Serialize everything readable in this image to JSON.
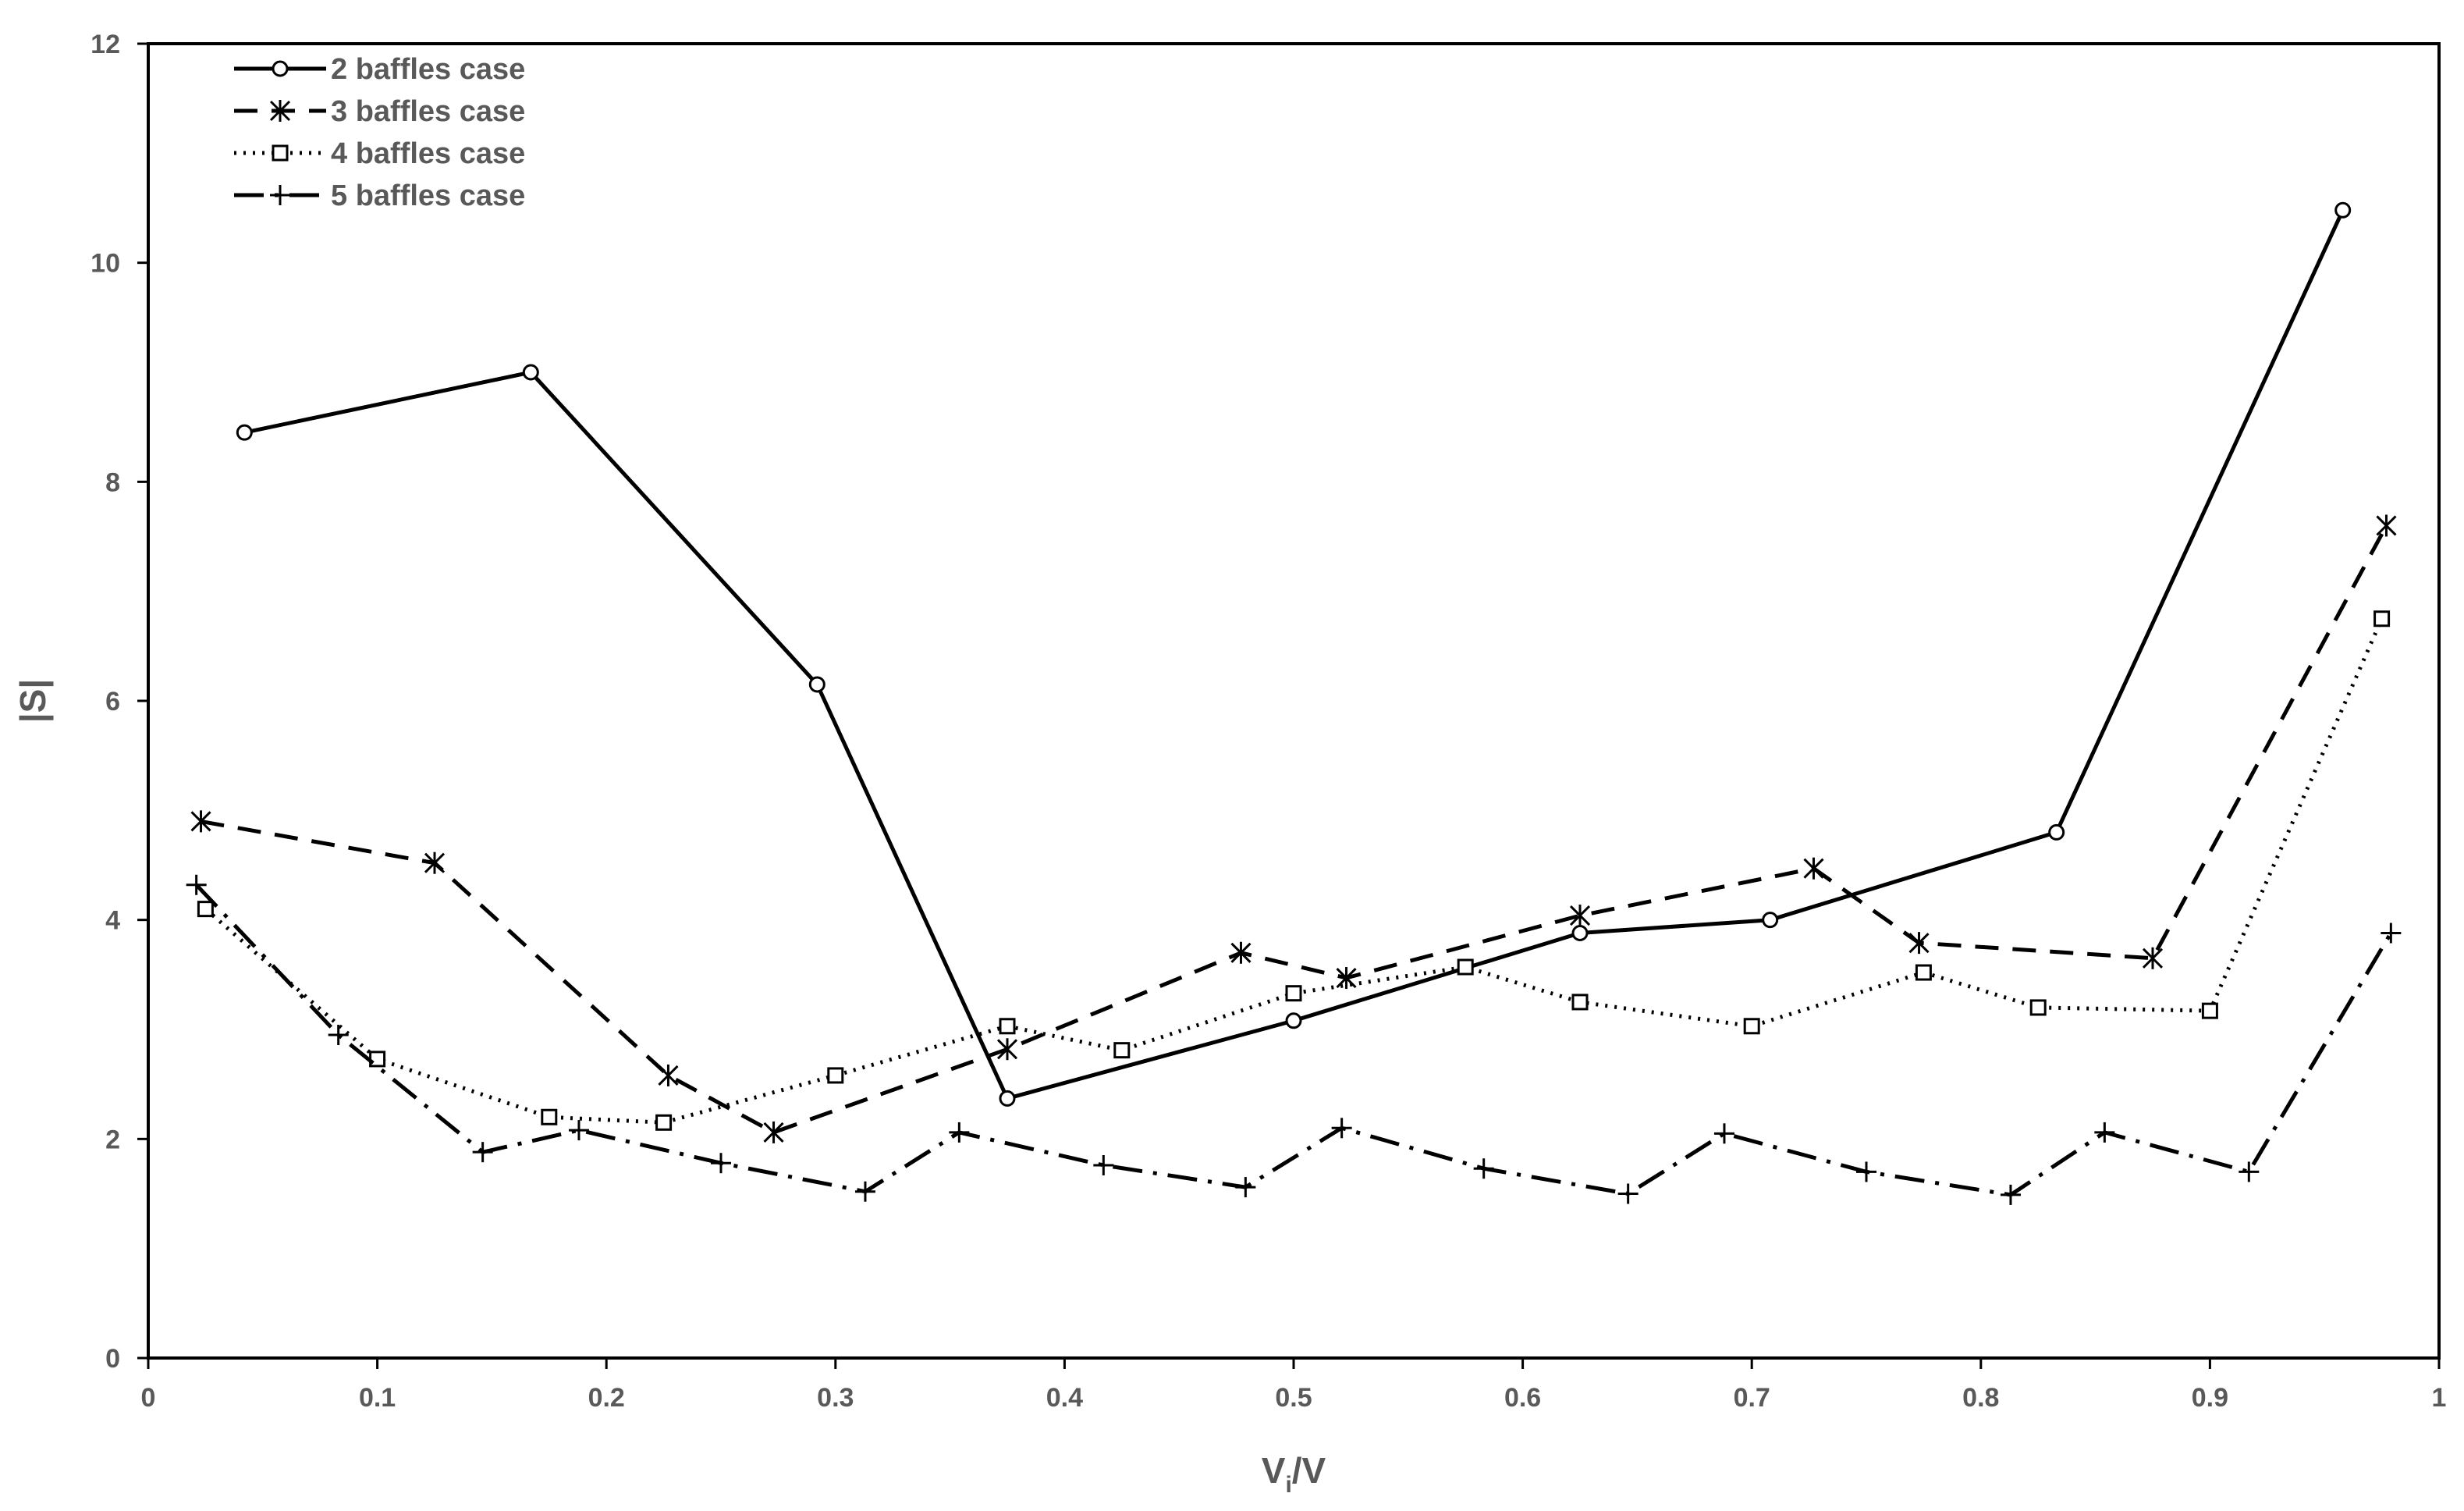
{
  "chart_data": {
    "type": "line",
    "title": "",
    "xlabel": "V",
    "xlabel_sub": "i",
    "xlabel_suffix": "/V",
    "ylabel": "|S|",
    "xlim": [
      0,
      1
    ],
    "ylim": [
      0,
      12
    ],
    "x_ticks": [
      "0",
      "0.1",
      "0.2",
      "0.3",
      "0.4",
      "0.5",
      "0.6",
      "0.7",
      "0.8",
      "0.9",
      "1"
    ],
    "y_ticks": [
      "0",
      "2",
      "4",
      "6",
      "8",
      "10",
      "12"
    ],
    "grid": false,
    "legend_position": "top-left",
    "series": [
      {
        "name": "2 baffles case",
        "marker": "circle",
        "dash": "solid",
        "points": [
          [
            0.042,
            8.45
          ],
          [
            0.167,
            9.0
          ],
          [
            0.292,
            6.15
          ],
          [
            0.375,
            2.37
          ],
          [
            0.5,
            3.08
          ],
          [
            0.625,
            3.88
          ],
          [
            0.708,
            4.0
          ],
          [
            0.833,
            4.8
          ],
          [
            0.958,
            10.48
          ]
        ]
      },
      {
        "name": "3 baffles case",
        "marker": "asterisk",
        "dash": "dashed",
        "points": [
          [
            0.023,
            4.9
          ],
          [
            0.125,
            4.52
          ],
          [
            0.227,
            2.58
          ],
          [
            0.273,
            2.06
          ],
          [
            0.375,
            2.82
          ],
          [
            0.477,
            3.7
          ],
          [
            0.523,
            3.47
          ],
          [
            0.625,
            4.04
          ],
          [
            0.727,
            4.47
          ],
          [
            0.773,
            3.79
          ],
          [
            0.875,
            3.65
          ],
          [
            0.977,
            7.6
          ]
        ]
      },
      {
        "name": "4 baffles case",
        "marker": "square",
        "dash": "dotted",
        "points": [
          [
            0.025,
            4.1
          ],
          [
            0.1,
            2.73
          ],
          [
            0.175,
            2.2
          ],
          [
            0.225,
            2.15
          ],
          [
            0.3,
            2.58
          ],
          [
            0.375,
            3.03
          ],
          [
            0.425,
            2.81
          ],
          [
            0.5,
            3.33
          ],
          [
            0.575,
            3.57
          ],
          [
            0.625,
            3.25
          ],
          [
            0.7,
            3.03
          ],
          [
            0.775,
            3.52
          ],
          [
            0.825,
            3.2
          ],
          [
            0.9,
            3.17
          ],
          [
            0.975,
            6.75
          ]
        ]
      },
      {
        "name": "5 baffles case",
        "marker": "plus",
        "dash": "dash-dot",
        "points": [
          [
            0.021,
            4.32
          ],
          [
            0.083,
            2.95
          ],
          [
            0.146,
            1.88
          ],
          [
            0.188,
            2.08
          ],
          [
            0.25,
            1.78
          ],
          [
            0.313,
            1.52
          ],
          [
            0.354,
            2.06
          ],
          [
            0.417,
            1.76
          ],
          [
            0.479,
            1.56
          ],
          [
            0.521,
            2.1
          ],
          [
            0.583,
            1.73
          ],
          [
            0.646,
            1.5
          ],
          [
            0.688,
            2.05
          ],
          [
            0.75,
            1.7
          ],
          [
            0.813,
            1.49
          ],
          [
            0.854,
            2.06
          ],
          [
            0.917,
            1.7
          ],
          [
            0.979,
            3.88
          ]
        ]
      }
    ]
  }
}
